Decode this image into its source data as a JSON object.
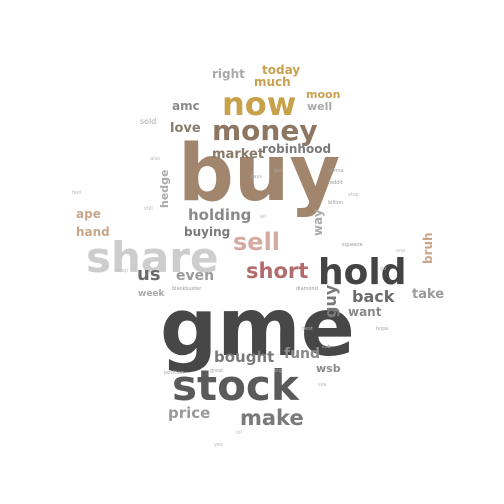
{
  "words": [
    {
      "text": "gme",
      "color": "#474747"
    },
    {
      "text": "buy",
      "color": "#a1866d"
    },
    {
      "text": "stock",
      "color": "#5a5a5a"
    },
    {
      "text": "share",
      "color": "#cdcdcd"
    },
    {
      "text": "hold",
      "color": "#444444"
    },
    {
      "text": "now",
      "color": "#c7a24a"
    },
    {
      "text": "money",
      "color": "#8d7763"
    },
    {
      "text": "sell",
      "color": "#d3aba0"
    },
    {
      "text": "short",
      "color": "#b36a6a"
    },
    {
      "text": "make",
      "color": "#7a7a7a"
    },
    {
      "text": "holding",
      "color": "#8a8a8a"
    },
    {
      "text": "bought",
      "color": "#7a7a7a"
    },
    {
      "text": "fund",
      "color": "#8a8a8a"
    },
    {
      "text": "price",
      "color": "#9a9a9a"
    },
    {
      "text": "us",
      "color": "#6b6b6b"
    },
    {
      "text": "even",
      "color": "#9a9a9a"
    },
    {
      "text": "back",
      "color": "#6b6b6b"
    },
    {
      "text": "want",
      "color": "#8a8a8a"
    },
    {
      "text": "guy",
      "color": "#7a7a7a"
    },
    {
      "text": "take",
      "color": "#9a9a9a"
    },
    {
      "text": "market",
      "color": "#8a7a6a"
    },
    {
      "text": "love",
      "color": "#8a7a6a"
    },
    {
      "text": "amc",
      "color": "#8a8a8a"
    },
    {
      "text": "right",
      "color": "#aaaaaa"
    },
    {
      "text": "much",
      "color": "#c8a050"
    },
    {
      "text": "today",
      "color": "#c8a050"
    },
    {
      "text": "moon",
      "color": "#c8a050"
    },
    {
      "text": "well",
      "color": "#aaaaaa"
    },
    {
      "text": "robinhood",
      "color": "#7a7a7a"
    },
    {
      "text": "buying",
      "color": "#7a7a7a"
    },
    {
      "text": "ape",
      "color": "#c9a68a"
    },
    {
      "text": "hand",
      "color": "#c9a68a"
    },
    {
      "text": "way",
      "color": "#aaaaaa"
    },
    {
      "text": "bruh",
      "color": "#c9a68a"
    },
    {
      "text": "hedge",
      "color": "#aaaaaa"
    },
    {
      "text": "wsb",
      "color": "#8a8a8a"
    },
    {
      "text": "week",
      "color": "#aaaaaa"
    },
    {
      "text": "blackbuster",
      "color": "#999999"
    },
    {
      "text": "diamond",
      "color": "#999999"
    },
    {
      "text": "gonna",
      "color": "#999999"
    },
    {
      "text": "reddit",
      "color": "#999999"
    },
    {
      "text": "billion",
      "color": "#999999"
    },
    {
      "text": "squeeze",
      "color": "#999999"
    },
    {
      "text": "days",
      "color": "#aaaaaa"
    },
    {
      "text": "got",
      "color": "#aaaaaa"
    },
    {
      "text": "sold",
      "color": "#aaaaaa"
    },
    {
      "text": "let",
      "color": "#bbbbbb"
    },
    {
      "text": "big",
      "color": "#aaaaaa"
    },
    {
      "text": "great",
      "color": "#aaaaaa"
    },
    {
      "text": "position",
      "color": "#aaaaaa"
    },
    {
      "text": "best",
      "color": "#aaaaaa"
    },
    {
      "text": "hope",
      "color": "#aaaaaa"
    },
    {
      "text": "sub",
      "color": "#aaaaaa"
    },
    {
      "text": "also",
      "color": "#bbbbbb"
    },
    {
      "text": "still",
      "color": "#bbbbbb"
    },
    {
      "text": "keep",
      "color": "#bbbbbb"
    },
    {
      "text": "feel",
      "color": "#bbbbbb"
    },
    {
      "text": "stop",
      "color": "#bbbbbb"
    },
    {
      "text": "one",
      "color": "#bbbbbb"
    },
    {
      "text": "go",
      "color": "#bbbbbb"
    },
    {
      "text": "see",
      "color": "#bbbbbb"
    },
    {
      "text": "lol",
      "color": "#bbbbbb"
    },
    {
      "text": "yes",
      "color": "#bbbbbb"
    }
  ]
}
